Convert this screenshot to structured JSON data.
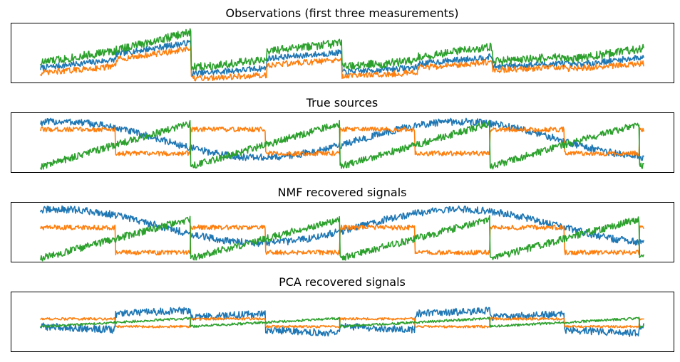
{
  "chart_data": [
    {
      "type": "line",
      "title": "Observations (first three measurements)",
      "xticks": "hidden",
      "yticks": "hidden",
      "grid": false,
      "series": [
        {
          "color": "#1f77b4",
          "mean": [
            0.32,
            0.58,
            0.2,
            0.46,
            0.22,
            0.38,
            0.3,
            0.36,
            0.28,
            0.55,
            0.31
          ],
          "slope": [
            0.14,
            0.2,
            0.1,
            0.1,
            0.08,
            0.12,
            0.06,
            0.14,
            0.1,
            0.22,
            0.08
          ],
          "noise": 0.05
        },
        {
          "color": "#ff7f0e",
          "mean": [
            0.22,
            0.48,
            0.1,
            0.34,
            0.14,
            0.3,
            0.24,
            0.28,
            0.18,
            0.46,
            0.22
          ],
          "slope": [
            0.12,
            0.18,
            0.06,
            0.08,
            0.06,
            0.1,
            0.05,
            0.1,
            0.08,
            0.2,
            0.06
          ],
          "noise": 0.05
        },
        {
          "color": "#2ca02c",
          "mean": [
            0.44,
            0.7,
            0.32,
            0.6,
            0.32,
            0.52,
            0.4,
            0.48,
            0.38,
            0.72,
            0.42
          ],
          "slope": [
            0.2,
            0.3,
            0.12,
            0.14,
            0.1,
            0.18,
            0.08,
            0.2,
            0.12,
            0.3,
            0.1
          ],
          "noise": 0.07
        }
      ]
    },
    {
      "type": "line",
      "title": "True sources",
      "xticks": "hidden",
      "yticks": "hidden",
      "grid": false,
      "series": [
        {
          "color": "#1f77b4",
          "shape": "sine",
          "offset": 0.55,
          "amp": 0.3,
          "period": 560,
          "phase": 0.2,
          "noise": 0.06
        },
        {
          "color": "#ff7f0e",
          "shape": "square",
          "high": 0.72,
          "low": 0.32,
          "period": 210,
          "phase": 0.0,
          "noise": 0.04
        },
        {
          "color": "#2ca02c",
          "shape": "sawtooth",
          "low": 0.1,
          "high": 0.82,
          "period": 210,
          "phase": 0.0,
          "noise": 0.06
        }
      ]
    },
    {
      "type": "line",
      "title": "NMF recovered signals",
      "xticks": "hidden",
      "yticks": "hidden",
      "grid": false,
      "series": [
        {
          "color": "#1f77b4",
          "shape": "sine",
          "offset": 0.6,
          "amp": 0.28,
          "period": 560,
          "phase": 0.2,
          "noise": 0.06
        },
        {
          "color": "#ff7f0e",
          "shape": "square",
          "high": 0.58,
          "low": 0.16,
          "period": 210,
          "phase": 0.0,
          "noise": 0.04
        },
        {
          "color": "#2ca02c",
          "shape": "sawtooth",
          "low": 0.06,
          "high": 0.72,
          "period": 210,
          "phase": 0.0,
          "noise": 0.06
        }
      ]
    },
    {
      "type": "line",
      "title": "PCA recovered signals",
      "xticks": "hidden",
      "yticks": "hidden",
      "grid": false,
      "series": [
        {
          "color": "#1f77b4",
          "shape": "mixed",
          "offset": 0.5,
          "amp": 0.32,
          "period": 210,
          "phase": 0.0,
          "noise": 0.06
        },
        {
          "color": "#ff7f0e",
          "shape": "square",
          "high": 0.55,
          "low": 0.42,
          "period": 210,
          "phase": 0.0,
          "noise": 0.02
        },
        {
          "color": "#2ca02c",
          "shape": "sawtooth",
          "low": 0.42,
          "high": 0.56,
          "period": 210,
          "phase": 0.0,
          "noise": 0.02
        }
      ]
    }
  ]
}
